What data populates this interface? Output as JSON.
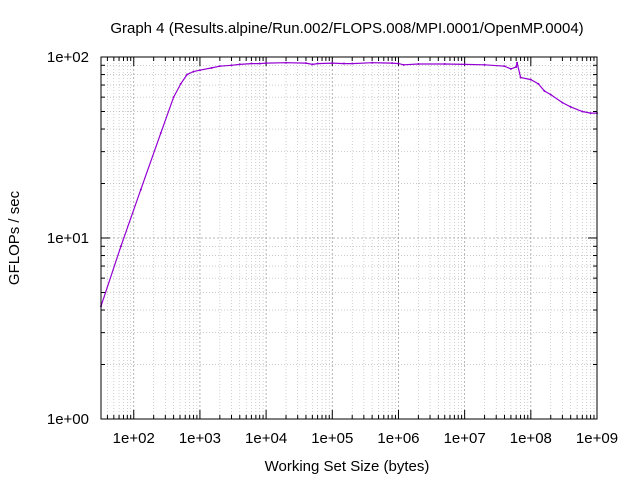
{
  "chart_data": {
    "type": "line",
    "title": "Graph 4 (Results.alpine/Run.002/FLOPS.008/MPI.0001/OpenMP.0004)",
    "xlabel": "Working Set Size (bytes)",
    "ylabel": "GFLOPs / sec",
    "x_scale": "log",
    "y_scale": "log",
    "xlim": [
      32,
      1000000000
    ],
    "ylim": [
      1,
      100
    ],
    "grid": true,
    "x_tick_labels": [
      "1e+02",
      "1e+03",
      "1e+04",
      "1e+05",
      "1e+06",
      "1e+07",
      "1e+08",
      "1e+09"
    ],
    "x_tick_values": [
      100,
      1000,
      10000,
      100000,
      1000000,
      10000000,
      100000000,
      1000000000
    ],
    "y_tick_labels": [
      "1e+00",
      "1e+01",
      "1e+02"
    ],
    "y_tick_values": [
      1,
      10,
      100
    ],
    "series": [
      {
        "color": "#9400d3",
        "x": [
          32,
          64,
          128,
          256,
          400,
          512,
          640,
          800,
          1000,
          1500,
          2000,
          3000,
          4000,
          6000,
          8000,
          10000,
          20000,
          40000,
          50000,
          60000,
          100000,
          150000,
          200000,
          400000,
          800000,
          1000000,
          1200000,
          2000000,
          5000000,
          10000000,
          20000000,
          40000000,
          50000000,
          60000000,
          62000000,
          70000000,
          100000000,
          130000000,
          160000000,
          200000000,
          300000000,
          400000000,
          600000000,
          800000000,
          1000000000
        ],
        "y": [
          4.2,
          9.0,
          18.5,
          38.0,
          60.0,
          71.0,
          80.0,
          83.0,
          84.5,
          87.0,
          89.0,
          90.0,
          91.0,
          92.0,
          92.0,
          92.5,
          93.0,
          92.5,
          91.0,
          92.0,
          92.5,
          92.0,
          92.0,
          93.0,
          92.5,
          92.0,
          90.5,
          91.5,
          91.5,
          91.0,
          90.5,
          89.0,
          86.0,
          88.0,
          93.0,
          77.0,
          75.0,
          71.0,
          65.0,
          62.0,
          56.0,
          53.0,
          50.0,
          49.0,
          49.0
        ]
      }
    ]
  }
}
